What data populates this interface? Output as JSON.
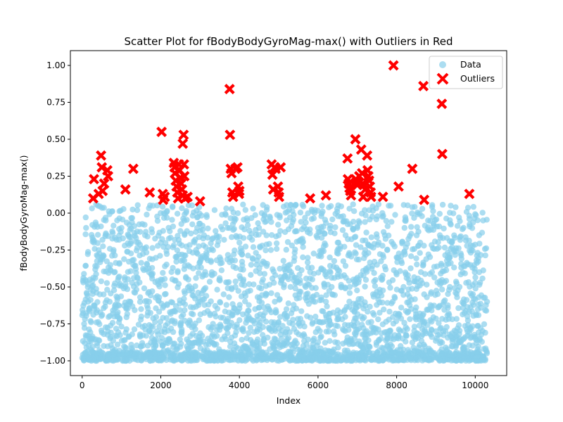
{
  "chart_data": {
    "type": "scatter",
    "title": "Scatter Plot for fBodyBodyGyroMag-max() with Outliers in Red",
    "xlabel": "Index",
    "ylabel": "fBodyBodyGyroMag-max()",
    "xlim": [
      -300,
      10800
    ],
    "ylim": [
      -1.1,
      1.1
    ],
    "x_ticks": [
      0,
      2000,
      4000,
      6000,
      8000,
      10000
    ],
    "x_tick_labels": [
      "0",
      "2000",
      "4000",
      "6000",
      "8000",
      "10000"
    ],
    "y_ticks": [
      -1.0,
      -0.75,
      -0.5,
      -0.25,
      0.0,
      0.25,
      0.5,
      0.75,
      1.0
    ],
    "y_tick_labels": [
      "−1.00",
      "−0.75",
      "−0.50",
      "−0.25",
      "0.00",
      "0.25",
      "0.50",
      "0.75",
      "1.00"
    ],
    "grid": false,
    "legend": "top-right",
    "series": [
      {
        "name": "Data",
        "color": "#87CEEB",
        "marker": "circle",
        "x_range": [
          0,
          10300
        ],
        "y_range": [
          -1.0,
          0.06
        ],
        "points": [
          [
            0,
            -0.98
          ],
          [
            100,
            -0.1
          ],
          [
            200,
            -0.45
          ],
          [
            300,
            -0.2
          ],
          [
            400,
            0.05
          ],
          [
            500,
            -0.3
          ],
          [
            600,
            -0.05
          ],
          [
            700,
            -0.6
          ],
          [
            800,
            -0.25
          ],
          [
            900,
            -0.7
          ],
          [
            1000,
            -0.1
          ],
          [
            1100,
            -0.5
          ],
          [
            1200,
            -0.08
          ],
          [
            1300,
            -0.35
          ],
          [
            1400,
            0.02
          ],
          [
            1500,
            -0.65
          ],
          [
            1600,
            -0.15
          ],
          [
            1700,
            -0.4
          ],
          [
            1800,
            0.05
          ],
          [
            1900,
            -0.8
          ],
          [
            2000,
            -0.2
          ],
          [
            2100,
            -0.55
          ],
          [
            2200,
            -0.1
          ],
          [
            2300,
            0.04
          ],
          [
            2400,
            -0.3
          ],
          [
            2500,
            -0.75
          ],
          [
            2600,
            -0.05
          ],
          [
            2700,
            -0.45
          ],
          [
            2800,
            -0.9
          ],
          [
            2900,
            -0.25
          ],
          [
            3000,
            -0.6
          ],
          [
            3100,
            -0.15
          ],
          [
            3200,
            -0.85
          ],
          [
            3300,
            -0.4
          ],
          [
            3400,
            -0.7
          ],
          [
            3500,
            -0.3
          ],
          [
            3600,
            -0.55
          ],
          [
            3700,
            -0.1
          ],
          [
            3800,
            0.03
          ],
          [
            3900,
            -0.5
          ],
          [
            4000,
            -0.2
          ],
          [
            4100,
            -0.8
          ],
          [
            4200,
            -0.05
          ],
          [
            4300,
            -0.35
          ],
          [
            4400,
            -0.65
          ],
          [
            4500,
            -0.1
          ],
          [
            4600,
            -0.45
          ],
          [
            4700,
            0.04
          ],
          [
            4800,
            -0.25
          ],
          [
            4900,
            -0.6
          ],
          [
            5000,
            -0.15
          ],
          [
            5100,
            -0.9
          ],
          [
            5200,
            -0.05
          ],
          [
            5300,
            -0.5
          ],
          [
            5400,
            -0.3
          ],
          [
            5500,
            -0.75
          ],
          [
            5600,
            -0.2
          ],
          [
            5700,
            -0.55
          ],
          [
            5800,
            -0.4
          ],
          [
            5900,
            -0.85
          ],
          [
            6000,
            -0.1
          ],
          [
            6100,
            0.05
          ],
          [
            6200,
            -0.6
          ],
          [
            6300,
            -0.3
          ],
          [
            6400,
            -0.8
          ],
          [
            6500,
            -0.2
          ],
          [
            6600,
            -0.5
          ],
          [
            6700,
            -0.15
          ],
          [
            6800,
            0.03
          ],
          [
            6900,
            -0.45
          ],
          [
            7000,
            -0.1
          ],
          [
            7100,
            -0.7
          ],
          [
            7200,
            -0.25
          ],
          [
            7300,
            0.02
          ],
          [
            7400,
            -0.55
          ],
          [
            7500,
            -0.35
          ],
          [
            7600,
            -0.85
          ],
          [
            7700,
            -0.15
          ],
          [
            7800,
            0.05
          ],
          [
            7900,
            -0.6
          ],
          [
            8000,
            -0.3
          ],
          [
            8100,
            -0.9
          ],
          [
            8200,
            -0.1
          ],
          [
            8300,
            -0.45
          ],
          [
            8400,
            0.04
          ],
          [
            8500,
            -0.7
          ],
          [
            8600,
            -0.2
          ],
          [
            8700,
            -0.55
          ],
          [
            8800,
            -0.05
          ],
          [
            8900,
            -0.4
          ],
          [
            9000,
            -0.8
          ],
          [
            9100,
            -0.15
          ],
          [
            9200,
            -0.6
          ],
          [
            9300,
            -0.3
          ],
          [
            9400,
            -0.9
          ],
          [
            9500,
            0.04
          ],
          [
            9600,
            -0.5
          ],
          [
            9700,
            -0.1
          ],
          [
            9800,
            -0.7
          ],
          [
            9900,
            -0.25
          ],
          [
            10000,
            -0.85
          ],
          [
            10100,
            -0.4
          ],
          [
            10200,
            -0.05
          ],
          [
            10300,
            -0.6
          ],
          [
            50,
            -0.75
          ],
          [
            150,
            -0.6
          ],
          [
            250,
            -0.85
          ],
          [
            350,
            -0.95
          ],
          [
            450,
            -0.55
          ],
          [
            550,
            -0.9
          ],
          [
            1050,
            -0.95
          ],
          [
            2050,
            -0.98
          ],
          [
            3050,
            -0.97
          ],
          [
            4050,
            -0.99
          ],
          [
            5050,
            -0.96
          ],
          [
            6050,
            -0.98
          ],
          [
            7050,
            -0.97
          ],
          [
            8050,
            -0.99
          ],
          [
            9050,
            -0.98
          ],
          [
            10050,
            -0.97
          ]
        ]
      },
      {
        "name": "Outliers",
        "color": "#FF0000",
        "marker": "X",
        "points": [
          [
            280,
            0.1
          ],
          [
            300,
            0.23
          ],
          [
            420,
            0.13
          ],
          [
            480,
            0.39
          ],
          [
            500,
            0.31
          ],
          [
            520,
            0.15
          ],
          [
            560,
            0.2
          ],
          [
            640,
            0.29
          ],
          [
            660,
            0.25
          ],
          [
            1100,
            0.16
          ],
          [
            1300,
            0.3
          ],
          [
            1720,
            0.14
          ],
          [
            2020,
            0.55
          ],
          [
            2050,
            0.13
          ],
          [
            2060,
            0.09
          ],
          [
            2100,
            0.11
          ],
          [
            2330,
            0.34
          ],
          [
            2350,
            0.31
          ],
          [
            2360,
            0.27
          ],
          [
            2380,
            0.22
          ],
          [
            2400,
            0.18
          ],
          [
            2420,
            0.14
          ],
          [
            2440,
            0.1
          ],
          [
            2460,
            0.33
          ],
          [
            2480,
            0.29
          ],
          [
            2500,
            0.24
          ],
          [
            2520,
            0.2
          ],
          [
            2540,
            0.16
          ],
          [
            2560,
            0.12
          ],
          [
            2580,
            0.53
          ],
          [
            2560,
            0.47
          ],
          [
            2590,
            0.33
          ],
          [
            2600,
            0.25
          ],
          [
            2620,
            0.1
          ],
          [
            2680,
            0.11
          ],
          [
            3000,
            0.08
          ],
          [
            3750,
            0.84
          ],
          [
            3760,
            0.53
          ],
          [
            3780,
            0.3
          ],
          [
            3800,
            0.27
          ],
          [
            3820,
            0.14
          ],
          [
            3840,
            0.11
          ],
          [
            3900,
            0.3
          ],
          [
            3950,
            0.31
          ],
          [
            3970,
            0.18
          ],
          [
            3990,
            0.13
          ],
          [
            4000,
            0.15
          ],
          [
            4820,
            0.33
          ],
          [
            4840,
            0.26
          ],
          [
            4860,
            0.16
          ],
          [
            4900,
            0.31
          ],
          [
            4920,
            0.3
          ],
          [
            4980,
            0.18
          ],
          [
            5000,
            0.14
          ],
          [
            5010,
            0.11
          ],
          [
            5050,
            0.31
          ],
          [
            5800,
            0.1
          ],
          [
            6200,
            0.12
          ],
          [
            6750,
            0.37
          ],
          [
            6760,
            0.23
          ],
          [
            6780,
            0.2
          ],
          [
            6800,
            0.17
          ],
          [
            6820,
            0.15
          ],
          [
            6840,
            0.12
          ],
          [
            6950,
            0.5
          ],
          [
            6960,
            0.23
          ],
          [
            6980,
            0.21
          ],
          [
            7000,
            0.19
          ],
          [
            7050,
            0.25
          ],
          [
            7100,
            0.43
          ],
          [
            7120,
            0.27
          ],
          [
            7140,
            0.2
          ],
          [
            7150,
            0.11
          ],
          [
            7200,
            0.16
          ],
          [
            7250,
            0.39
          ],
          [
            7260,
            0.29
          ],
          [
            7280,
            0.25
          ],
          [
            7300,
            0.22
          ],
          [
            7320,
            0.18
          ],
          [
            7340,
            0.14
          ],
          [
            7350,
            0.11
          ],
          [
            7650,
            0.11
          ],
          [
            7920,
            1.0
          ],
          [
            8050,
            0.18
          ],
          [
            8400,
            0.3
          ],
          [
            8680,
            0.86
          ],
          [
            8700,
            0.09
          ],
          [
            9150,
            0.74
          ],
          [
            9160,
            0.4
          ],
          [
            9850,
            0.13
          ]
        ]
      }
    ]
  }
}
